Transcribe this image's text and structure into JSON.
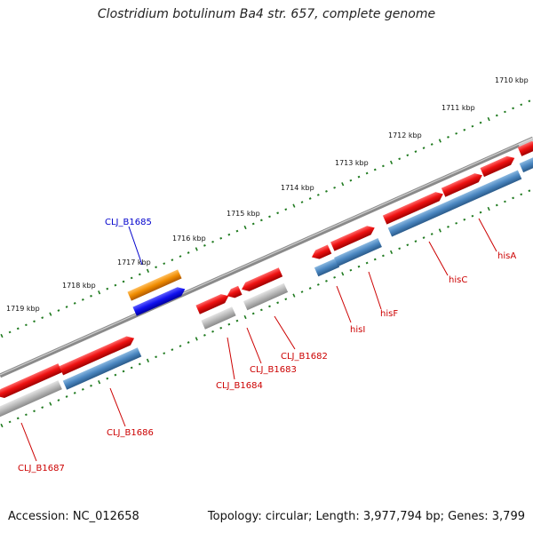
{
  "title": "Clostridium botulinum Ba4 str. 657, complete genome",
  "footer": {
    "accession": "Accession: NC_012658",
    "topology": "Topology: circular; Length: 3,977,794 bp; Genes: 3,799"
  },
  "colors": {
    "backbone": "#8a8a8a",
    "tick": "#1f7a1f",
    "cds_red": "#ee1111",
    "gene_blue": "#4a86c0",
    "gene_gray": "#b8b8b8",
    "orange": "#f08c00",
    "pure_blue": "#1010ee",
    "label_red": "#cc0000",
    "label_blue": "#0000cc"
  },
  "ticks": [
    "1710 kbp",
    "1711 kbp",
    "1712 kbp",
    "1713 kbp",
    "1714 kbp",
    "1715 kbp",
    "1716 kbp",
    "1717 kbp",
    "1718 kbp",
    "1719 kbp"
  ],
  "labels": [
    {
      "text": "CLJ_B1685",
      "color": "blue"
    },
    {
      "text": "hisA",
      "color": "red"
    },
    {
      "text": "hisC",
      "color": "red"
    },
    {
      "text": "hisF",
      "color": "red"
    },
    {
      "text": "hisI",
      "color": "red"
    },
    {
      "text": "CLJ_B1682",
      "color": "red"
    },
    {
      "text": "CLJ_B1683",
      "color": "red"
    },
    {
      "text": "CLJ_B1684",
      "color": "red"
    },
    {
      "text": "CLJ_B1686",
      "color": "red"
    },
    {
      "text": "CLJ_B1687",
      "color": "red"
    }
  ]
}
